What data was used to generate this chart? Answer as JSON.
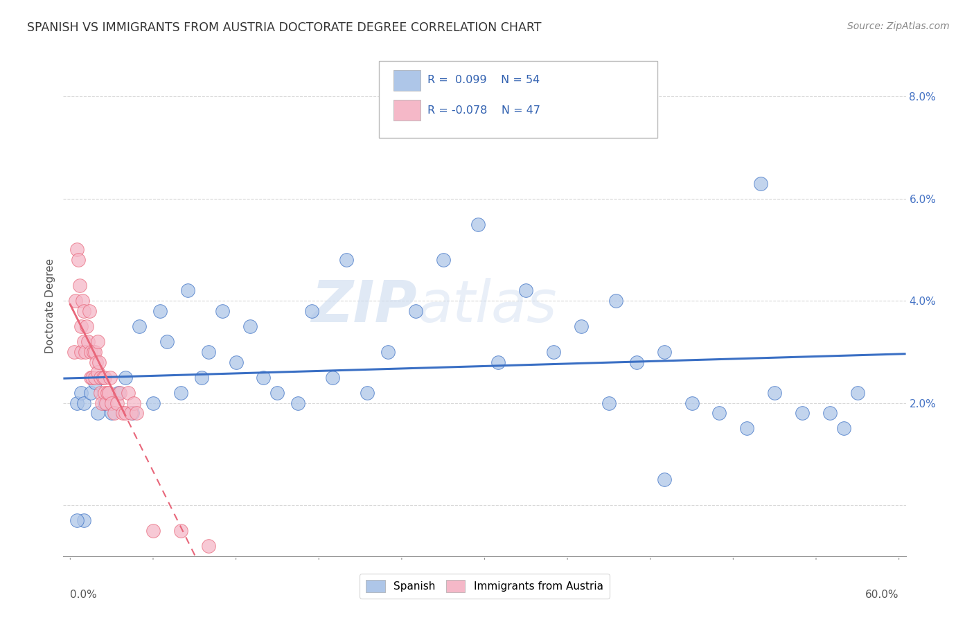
{
  "title": "SPANISH VS IMMIGRANTS FROM AUSTRIA DOCTORATE DEGREE CORRELATION CHART",
  "source": "Source: ZipAtlas.com",
  "ylabel": "Doctorate Degree",
  "watermark_zip": "ZIP",
  "watermark_atlas": "atlas",
  "legend_r1": "R =  0.099",
  "legend_n1": "N = 54",
  "legend_r2": "R = -0.078",
  "legend_n2": "N = 47",
  "legend_label1": "Spanish",
  "legend_label2": "Immigrants from Austria",
  "xmin": -0.005,
  "xmax": 0.605,
  "ymin": -0.01,
  "ymax": 0.088,
  "yticks": [
    0.0,
    0.02,
    0.04,
    0.06,
    0.08
  ],
  "color_spanish": "#aec6e8",
  "color_austria": "#f5b8c8",
  "color_trendline_spanish": "#3a6fc4",
  "color_trendline_austria": "#e8667a",
  "background_color": "#ffffff",
  "grid_color": "#d8d8d8",
  "spanish_x": [
    0.005,
    0.008,
    0.01,
    0.015,
    0.018,
    0.02,
    0.022,
    0.025,
    0.03,
    0.035,
    0.04,
    0.045,
    0.05,
    0.06,
    0.065,
    0.07,
    0.08,
    0.085,
    0.095,
    0.1,
    0.11,
    0.12,
    0.13,
    0.14,
    0.15,
    0.165,
    0.175,
    0.19,
    0.2,
    0.215,
    0.23,
    0.25,
    0.27,
    0.295,
    0.31,
    0.33,
    0.35,
    0.37,
    0.39,
    0.41,
    0.43,
    0.45,
    0.47,
    0.49,
    0.51,
    0.53,
    0.55,
    0.57,
    0.01,
    0.005,
    0.395,
    0.56,
    0.5,
    0.43
  ],
  "spanish_y": [
    0.02,
    0.022,
    0.02,
    0.022,
    0.024,
    0.018,
    0.025,
    0.02,
    0.018,
    0.022,
    0.025,
    0.018,
    0.035,
    0.02,
    0.038,
    0.032,
    0.022,
    0.042,
    0.025,
    0.03,
    0.038,
    0.028,
    0.035,
    0.025,
    0.022,
    0.02,
    0.038,
    0.025,
    0.048,
    0.022,
    0.03,
    0.038,
    0.048,
    0.055,
    0.028,
    0.042,
    0.03,
    0.035,
    0.02,
    0.028,
    0.03,
    0.02,
    0.018,
    0.015,
    0.022,
    0.018,
    0.018,
    0.022,
    -0.003,
    -0.003,
    0.04,
    0.015,
    0.063,
    0.005
  ],
  "austria_x": [
    0.003,
    0.004,
    0.005,
    0.006,
    0.007,
    0.008,
    0.008,
    0.009,
    0.01,
    0.01,
    0.011,
    0.012,
    0.013,
    0.014,
    0.015,
    0.015,
    0.016,
    0.017,
    0.018,
    0.018,
    0.019,
    0.02,
    0.02,
    0.021,
    0.022,
    0.022,
    0.023,
    0.024,
    0.025,
    0.025,
    0.026,
    0.027,
    0.028,
    0.029,
    0.03,
    0.032,
    0.034,
    0.036,
    0.038,
    0.04,
    0.042,
    0.044,
    0.046,
    0.048,
    0.06,
    0.08,
    0.1
  ],
  "austria_y": [
    0.03,
    0.04,
    0.05,
    0.048,
    0.043,
    0.035,
    0.03,
    0.04,
    0.038,
    0.032,
    0.03,
    0.035,
    0.032,
    0.038,
    0.03,
    0.025,
    0.025,
    0.03,
    0.03,
    0.025,
    0.028,
    0.032,
    0.026,
    0.028,
    0.022,
    0.025,
    0.02,
    0.025,
    0.025,
    0.022,
    0.02,
    0.022,
    0.022,
    0.025,
    0.02,
    0.018,
    0.02,
    0.022,
    0.018,
    0.018,
    0.022,
    0.018,
    0.02,
    0.018,
    -0.005,
    -0.005,
    -0.008
  ]
}
